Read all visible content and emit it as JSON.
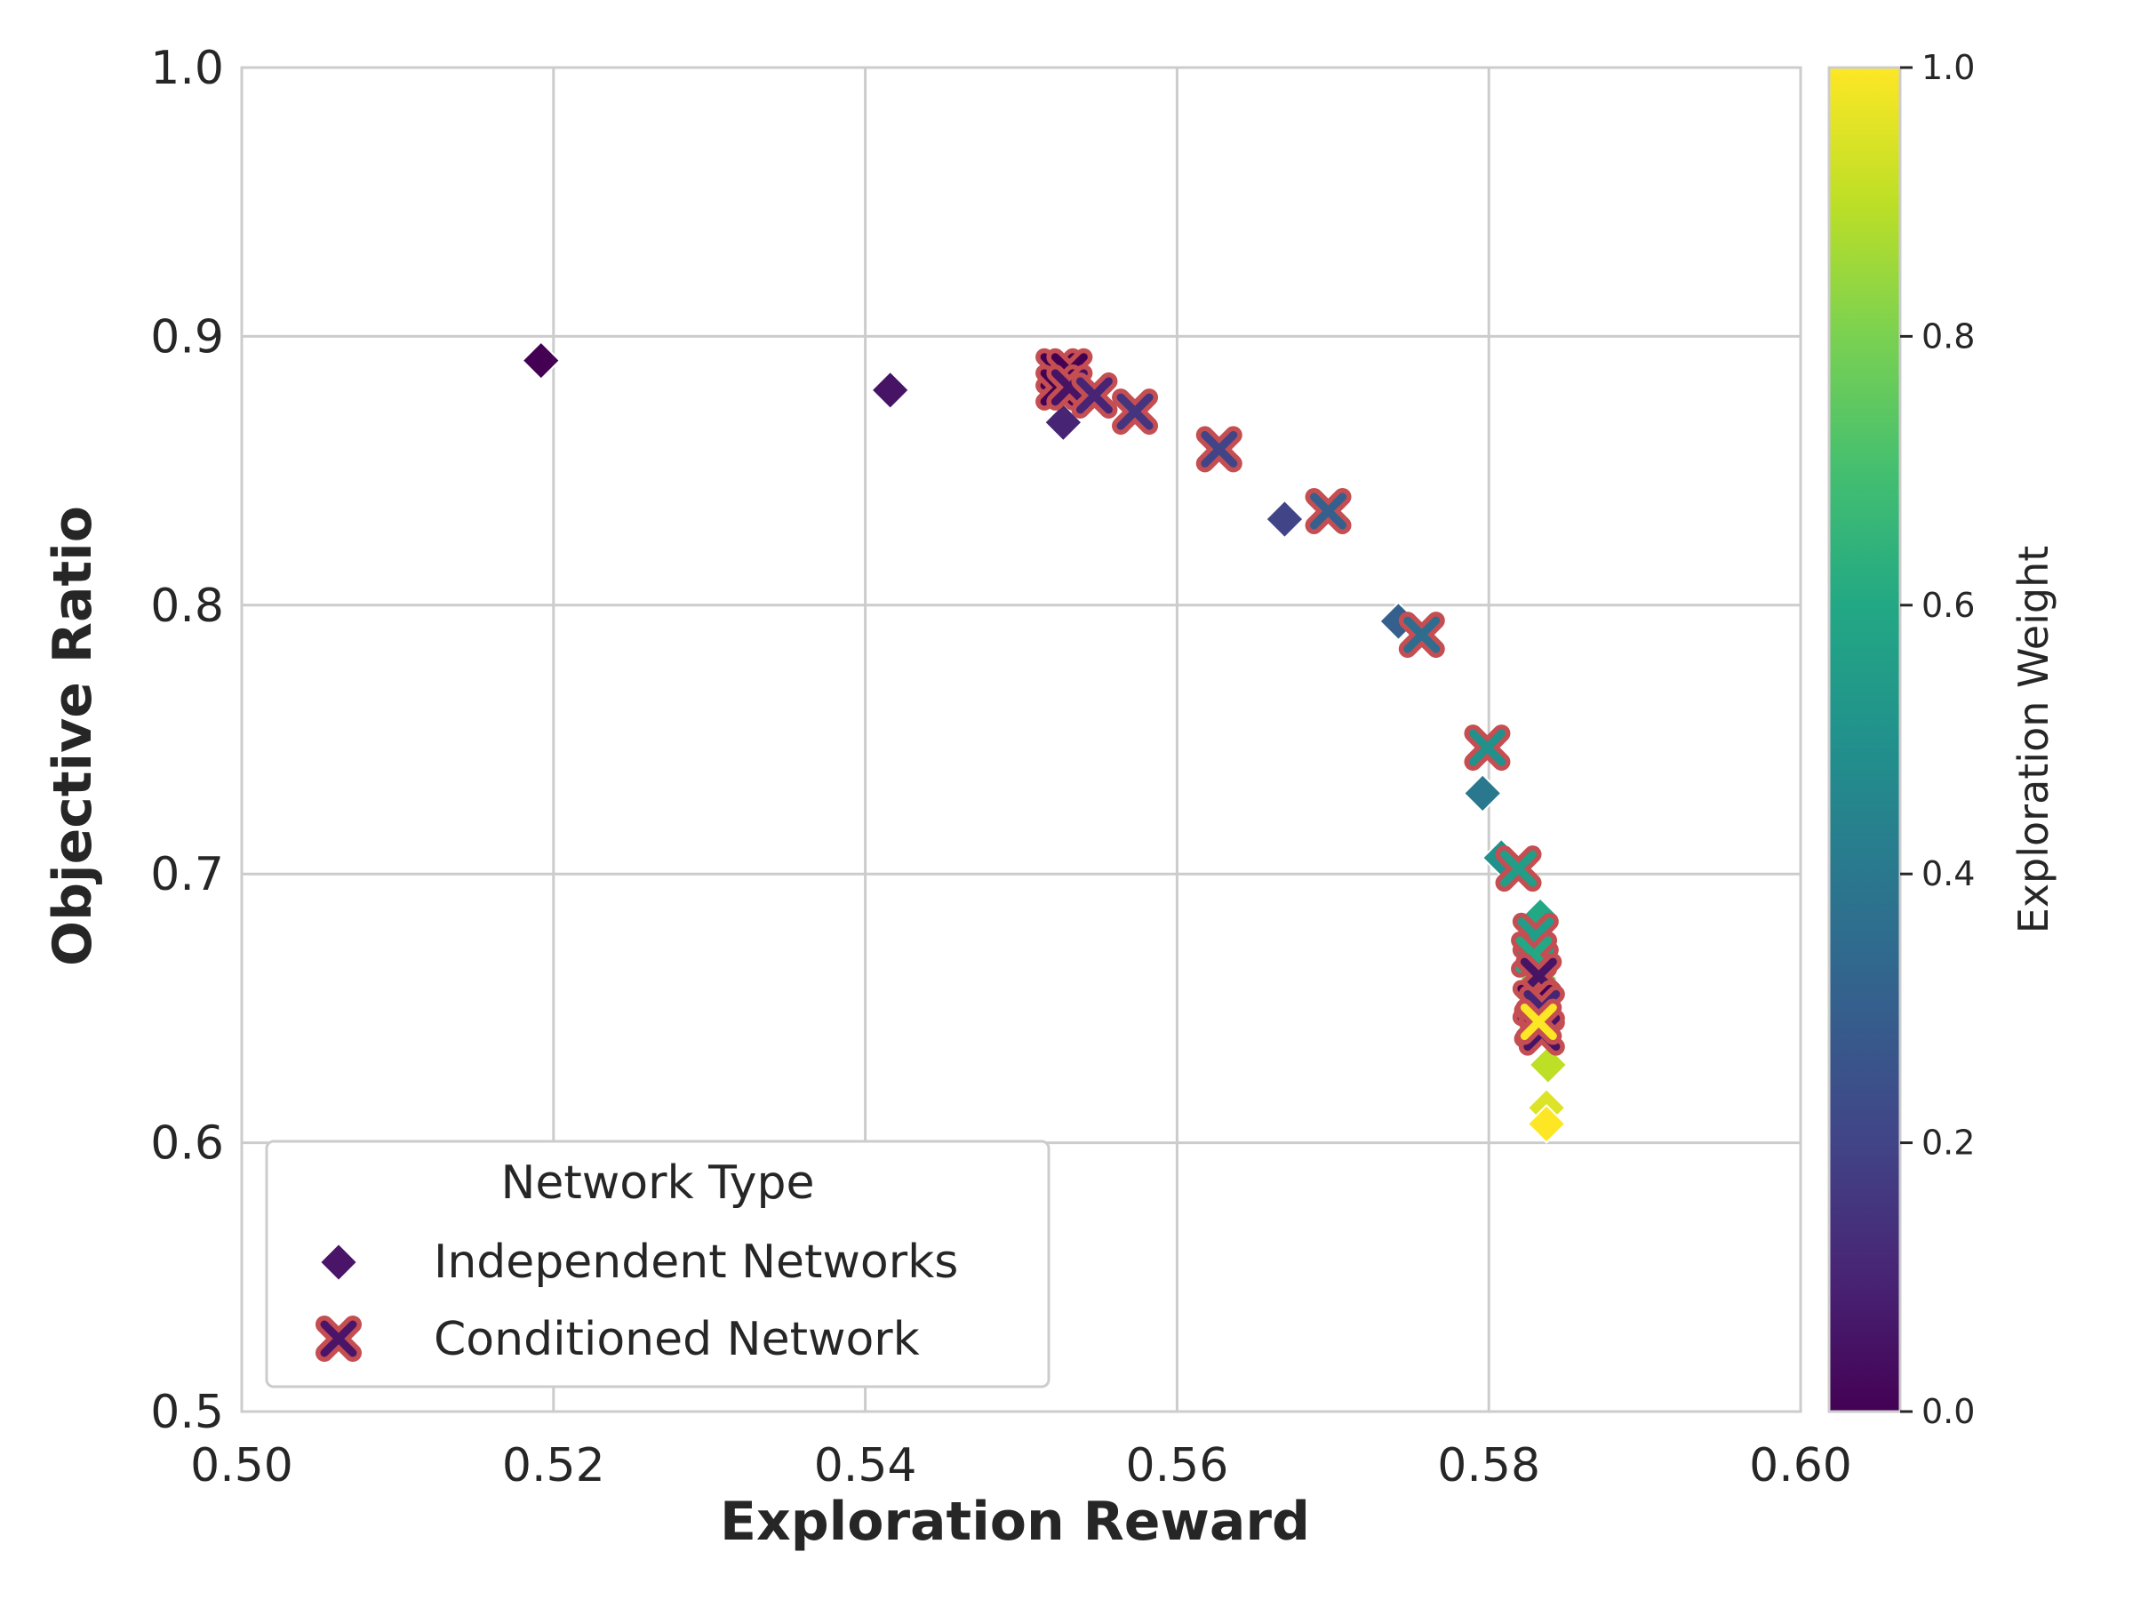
{
  "chart_data": {
    "type": "scatter",
    "xlabel": "Exploration Reward",
    "ylabel": "Objective Ratio",
    "xlim": [
      0.5,
      0.6
    ],
    "ylim": [
      0.5,
      1.0
    ],
    "xticks": [
      0.5,
      0.52,
      0.54,
      0.56,
      0.58,
      0.6
    ],
    "yticks": [
      0.5,
      0.6,
      0.7,
      0.8,
      0.9,
      1.0
    ],
    "xtick_labels": [
      "0.50",
      "0.52",
      "0.54",
      "0.56",
      "0.58",
      "0.60"
    ],
    "ytick_labels": [
      "0.5",
      "0.6",
      "0.7",
      "0.8",
      "0.9",
      "1.0"
    ],
    "grid": true,
    "legend": {
      "title": "Network Type",
      "placement": "bottom-left",
      "entries": [
        "Independent Networks",
        "Conditioned Network"
      ]
    },
    "colorbar": {
      "label": "Exploration Weight",
      "colormap": "viridis",
      "range": [
        0.0,
        1.0
      ],
      "ticks": [
        0.0,
        0.2,
        0.4,
        0.6,
        0.8,
        1.0
      ],
      "tick_labels": [
        "0.0",
        "0.2",
        "0.4",
        "0.6",
        "0.8",
        "1.0"
      ]
    },
    "series": [
      {
        "name": "Independent Networks",
        "marker": "diamond",
        "points": [
          {
            "x": 0.5192,
            "y": 0.891,
            "w": 0.0
          },
          {
            "x": 0.5416,
            "y": 0.88,
            "w": 0.05
          },
          {
            "x": 0.5527,
            "y": 0.868,
            "w": 0.1
          },
          {
            "x": 0.5669,
            "y": 0.832,
            "w": 0.2
          },
          {
            "x": 0.5742,
            "y": 0.794,
            "w": 0.3
          },
          {
            "x": 0.5796,
            "y": 0.73,
            "w": 0.4
          },
          {
            "x": 0.5808,
            "y": 0.706,
            "w": 0.5
          },
          {
            "x": 0.5833,
            "y": 0.684,
            "w": 0.6
          },
          {
            "x": 0.5832,
            "y": 0.661,
            "w": 0.8
          },
          {
            "x": 0.5838,
            "y": 0.629,
            "w": 0.9
          },
          {
            "x": 0.5837,
            "y": 0.613,
            "w": 0.95
          },
          {
            "x": 0.5837,
            "y": 0.607,
            "w": 1.0
          }
        ]
      },
      {
        "name": "Conditioned Network",
        "marker": "x",
        "edge_color": "#c44e52",
        "points": [
          {
            "x": 0.5524,
            "y": 0.887,
            "w": 0.0
          },
          {
            "x": 0.5531,
            "y": 0.887,
            "w": 0.0
          },
          {
            "x": 0.5524,
            "y": 0.881,
            "w": 0.0
          },
          {
            "x": 0.5531,
            "y": 0.881,
            "w": 0.05
          },
          {
            "x": 0.5547,
            "y": 0.878,
            "w": 0.1
          },
          {
            "x": 0.5573,
            "y": 0.872,
            "w": 0.15
          },
          {
            "x": 0.5627,
            "y": 0.858,
            "w": 0.2
          },
          {
            "x": 0.5697,
            "y": 0.835,
            "w": 0.3
          },
          {
            "x": 0.5757,
            "y": 0.789,
            "w": 0.35
          },
          {
            "x": 0.5799,
            "y": 0.747,
            "w": 0.5
          },
          {
            "x": 0.5819,
            "y": 0.702,
            "w": 0.55
          },
          {
            "x": 0.583,
            "y": 0.677,
            "w": 0.55
          },
          {
            "x": 0.5829,
            "y": 0.67,
            "w": 0.6
          },
          {
            "x": 0.5832,
            "y": 0.662,
            "w": 0.05
          },
          {
            "x": 0.583,
            "y": 0.652,
            "w": 0.0
          },
          {
            "x": 0.5834,
            "y": 0.65,
            "w": 0.1
          },
          {
            "x": 0.5831,
            "y": 0.644,
            "w": 0.2
          },
          {
            "x": 0.5834,
            "y": 0.641,
            "w": 0.05
          },
          {
            "x": 0.5832,
            "y": 0.645,
            "w": 1.0
          }
        ]
      }
    ]
  }
}
